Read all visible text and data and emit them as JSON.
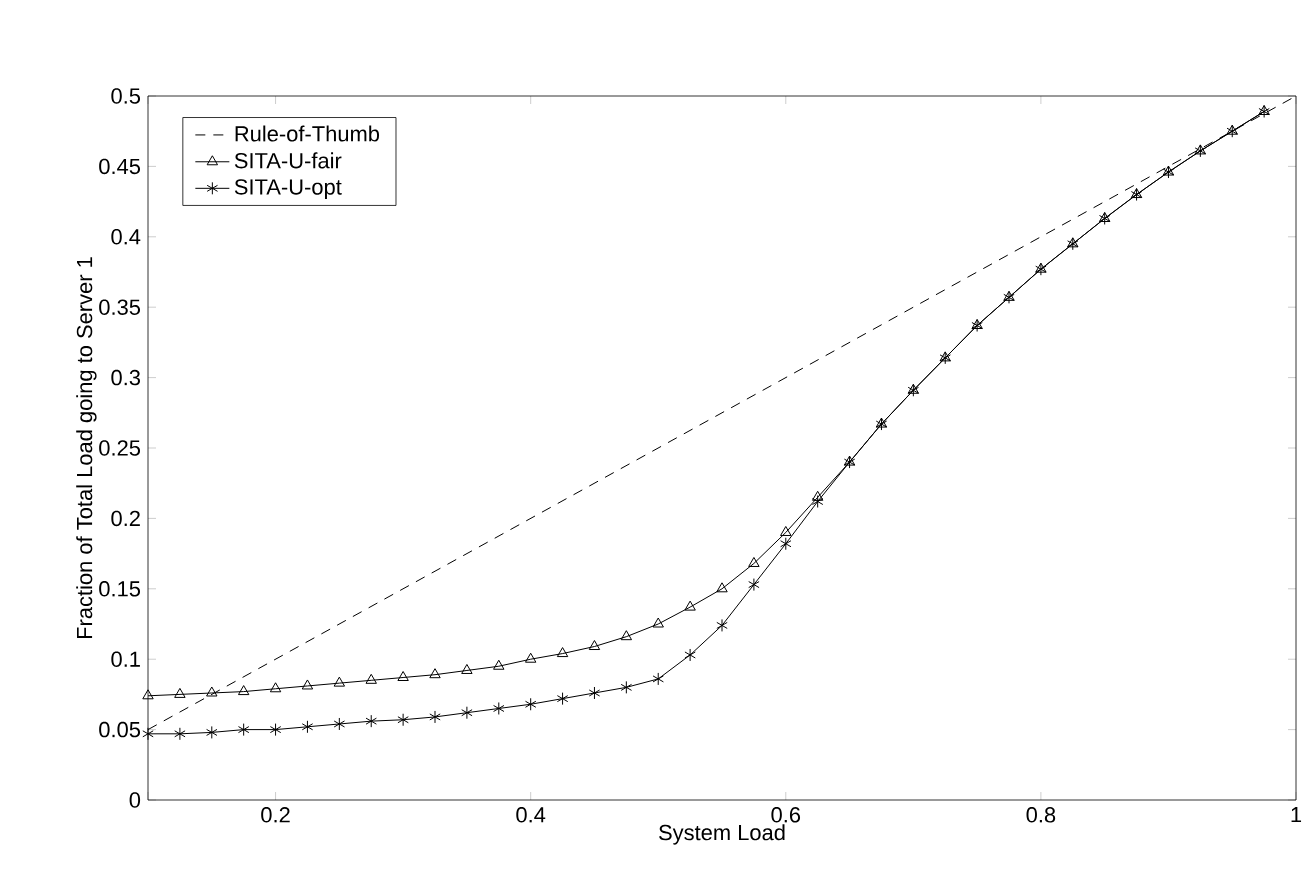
{
  "chart_data": {
    "type": "line",
    "xlabel": "System Load",
    "ylabel": "Fraction of Total Load going to Server 1",
    "xlim": [
      0.1,
      1
    ],
    "ylim": [
      0,
      0.5
    ],
    "xticks": [
      {
        "value": 0.1,
        "label": null
      },
      0.2,
      0.4,
      0.6,
      0.8,
      1
    ],
    "yticks": [
      0,
      0.05,
      0.1,
      0.15,
      0.2,
      0.25,
      0.3,
      0.35,
      0.4,
      0.45,
      0.5
    ],
    "legend": "top left",
    "grid": false,
    "series": [
      {
        "name": "Rule-of-Thumb",
        "color": "#000000",
        "line_style": "dashed",
        "marker": "none",
        "x": [
          0.1,
          1
        ],
        "values": [
          0.05,
          0.5
        ]
      },
      {
        "name": "SITA-U-fair",
        "color": "#000000",
        "line_style": "solid",
        "marker": "triangle",
        "x": [
          0.1,
          0.125,
          0.15,
          0.175,
          0.2,
          0.225,
          0.25,
          0.275,
          0.3,
          0.325,
          0.35,
          0.375,
          0.4,
          0.425,
          0.45,
          0.475,
          0.5,
          0.525,
          0.55,
          0.575,
          0.6,
          0.625,
          0.65,
          0.675,
          0.7,
          0.725,
          0.75,
          0.775,
          0.8,
          0.825,
          0.85,
          0.875,
          0.9,
          0.925,
          0.95,
          0.975
        ],
        "values": [
          0.074,
          0.075,
          0.076,
          0.077,
          0.079,
          0.081,
          0.083,
          0.085,
          0.087,
          0.089,
          0.092,
          0.095,
          0.1,
          0.104,
          0.109,
          0.116,
          0.125,
          0.137,
          0.15,
          0.168,
          0.19,
          0.215,
          0.24,
          0.267,
          0.291,
          0.314,
          0.337,
          0.357,
          0.377,
          0.395,
          0.413,
          0.43,
          0.446,
          0.461,
          0.475,
          0.489
        ]
      },
      {
        "name": "SITA-U-opt",
        "color": "#000000",
        "line_style": "solid",
        "marker": "cross",
        "x": [
          0.1,
          0.125,
          0.15,
          0.175,
          0.2,
          0.225,
          0.25,
          0.275,
          0.3,
          0.325,
          0.35,
          0.375,
          0.4,
          0.425,
          0.45,
          0.475,
          0.5,
          0.525,
          0.55,
          0.575,
          0.6,
          0.625,
          0.65,
          0.675,
          0.7,
          0.725,
          0.75,
          0.775,
          0.8,
          0.825,
          0.85,
          0.875,
          0.9,
          0.925,
          0.95,
          0.975
        ],
        "values": [
          0.047,
          0.047,
          0.048,
          0.05,
          0.05,
          0.052,
          0.054,
          0.056,
          0.057,
          0.059,
          0.062,
          0.065,
          0.068,
          0.072,
          0.076,
          0.08,
          0.086,
          0.103,
          0.124,
          0.153,
          0.182,
          0.212,
          0.24,
          0.267,
          0.291,
          0.314,
          0.337,
          0.357,
          0.377,
          0.395,
          0.413,
          0.43,
          0.446,
          0.461,
          0.475,
          0.489
        ]
      }
    ]
  }
}
